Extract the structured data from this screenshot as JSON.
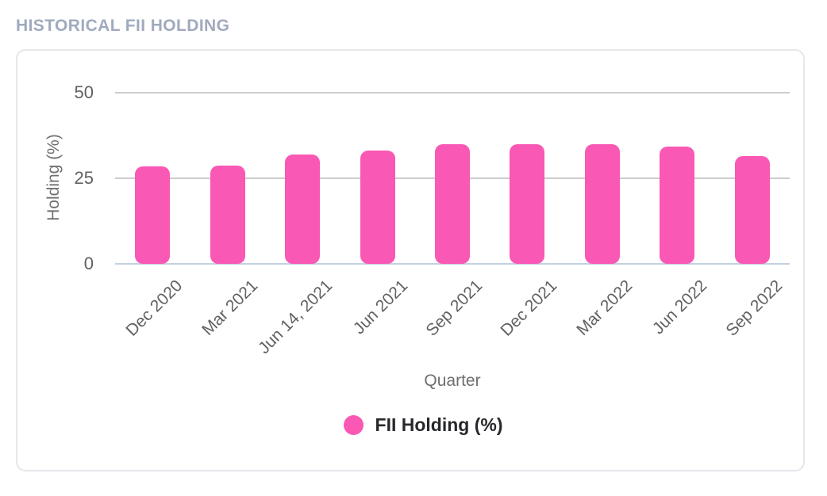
{
  "section": {
    "title": "HISTORICAL FII HOLDING"
  },
  "colors": {
    "bar": "#F958B4",
    "section_title": "#A0AABE",
    "axis_text": "#616161",
    "axis_title_text": "#6F6F6F",
    "gridline": "#CCCCCC",
    "baseline": "#C4D0E0",
    "card_border": "#E5E7EB",
    "legend_text": "#26282B"
  },
  "chart_data": {
    "type": "bar",
    "title": "HISTORICAL FII HOLDING",
    "categories": [
      "Dec 2020",
      "Mar 2021",
      "Jun 14, 2021",
      "Jun 2021",
      "Sep 2021",
      "Dec 2021",
      "Mar 2022",
      "Jun 2022",
      "Sep 2022"
    ],
    "series": [
      {
        "name": "FII Holding (%)",
        "values": [
          28.4,
          28.8,
          32.0,
          33.0,
          35.0,
          35.0,
          35.0,
          34.2,
          31.5
        ]
      }
    ],
    "xlabel": "Quarter",
    "ylabel": "Holding (%)",
    "ylim": [
      0,
      50
    ],
    "yticks": [
      0,
      25,
      50
    ],
    "grid": true,
    "legend_position": "bottom",
    "bar_color": "#F958B4"
  }
}
